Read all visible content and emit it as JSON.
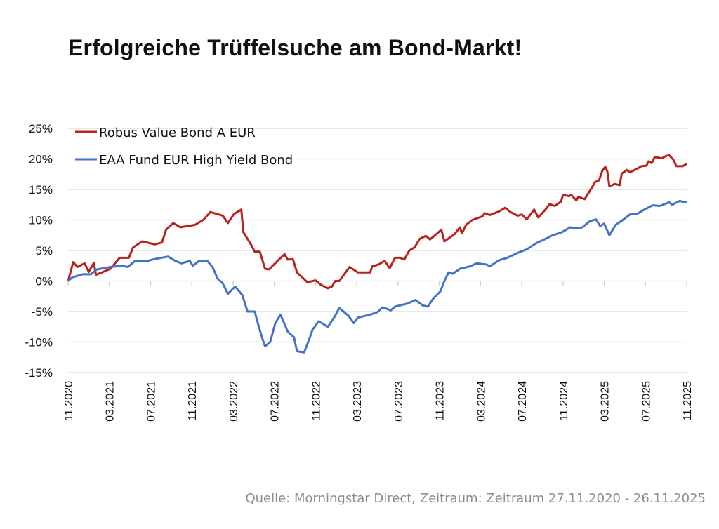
{
  "title": "Erfolgreiche Trüffelsuche am Bond-Markt!",
  "footer": "Quelle: Morningstar Direct, Zeitraum: Zeitraum 27.11.2020 - 26.11.2025",
  "chart_data": {
    "type": "line",
    "title": "Erfolgreiche Trüffelsuche am Bond-Markt!",
    "xlabel": "",
    "ylabel": "",
    "x_unit": "months since 11.2020",
    "xlim": [
      0,
      60
    ],
    "ylim": [
      -15,
      25
    ],
    "yticks": [
      25,
      20,
      15,
      10,
      5,
      0,
      -5,
      -10,
      -15
    ],
    "ytick_labels": [
      "25%",
      "20%",
      "15%",
      "10%",
      "5%",
      "0%",
      "-5%",
      "-10%",
      "-15%"
    ],
    "xticks": [
      0,
      4,
      8,
      12,
      16,
      20,
      24,
      28,
      32,
      36,
      40,
      44,
      48,
      52,
      56,
      60
    ],
    "xtick_labels": [
      "11.2020",
      "03.2021",
      "07.2021",
      "11.2021",
      "03.2022",
      "07.2022",
      "11.2022",
      "03.2023",
      "07.2023",
      "11.2023",
      "03.2024",
      "07.2024",
      "11.2024",
      "03.2025",
      "07.2025",
      "11.2025"
    ],
    "grid": true,
    "legend_position": "top-left",
    "series": [
      {
        "name": "Robus Value Bond A EUR",
        "color": "#b8221c",
        "points": [
          [
            0,
            0
          ],
          [
            0.5,
            3.1
          ],
          [
            0.9,
            2.3
          ],
          [
            1.6,
            2.9
          ],
          [
            2.0,
            1.5
          ],
          [
            2.5,
            3.0
          ],
          [
            2.7,
            1.0
          ],
          [
            4.1,
            2.0
          ],
          [
            5.0,
            3.8
          ],
          [
            5.9,
            3.8
          ],
          [
            6.3,
            5.5
          ],
          [
            7.2,
            6.5
          ],
          [
            8.4,
            6.0
          ],
          [
            9.1,
            6.3
          ],
          [
            9.5,
            8.4
          ],
          [
            10.2,
            9.5
          ],
          [
            10.9,
            8.8
          ],
          [
            12.3,
            9.2
          ],
          [
            13.1,
            10.0
          ],
          [
            13.8,
            11.3
          ],
          [
            15.0,
            10.7
          ],
          [
            15.5,
            9.5
          ],
          [
            16.1,
            11.0
          ],
          [
            16.8,
            11.7
          ],
          [
            17.0,
            8.0
          ],
          [
            17.7,
            6.1
          ],
          [
            18.1,
            4.8
          ],
          [
            18.6,
            4.8
          ],
          [
            19.1,
            2.0
          ],
          [
            19.5,
            1.9
          ],
          [
            20.2,
            3.1
          ],
          [
            21.0,
            4.4
          ],
          [
            21.3,
            3.5
          ],
          [
            21.8,
            3.6
          ],
          [
            22.2,
            1.4
          ],
          [
            23.2,
            -0.2
          ],
          [
            24.0,
            0.1
          ],
          [
            24.5,
            -0.6
          ],
          [
            25.2,
            -1.2
          ],
          [
            25.6,
            -0.9
          ],
          [
            25.9,
            0
          ],
          [
            26.3,
            0
          ],
          [
            27.3,
            2.3
          ],
          [
            28.1,
            1.4
          ],
          [
            29.3,
            1.4
          ],
          [
            29.5,
            2.4
          ],
          [
            30.1,
            2.7
          ],
          [
            30.7,
            3.3
          ],
          [
            31.2,
            2.1
          ],
          [
            31.7,
            3.8
          ],
          [
            32.2,
            3.8
          ],
          [
            32.6,
            3.5
          ],
          [
            33.1,
            5.0
          ],
          [
            33.6,
            5.5
          ],
          [
            34.1,
            6.9
          ],
          [
            34.7,
            7.4
          ],
          [
            35.1,
            6.8
          ],
          [
            35.6,
            7.5
          ],
          [
            36.2,
            8.4
          ],
          [
            36.5,
            6.5
          ],
          [
            37.5,
            7.7
          ],
          [
            38.0,
            8.8
          ],
          [
            38.2,
            7.8
          ],
          [
            38.6,
            9.2
          ],
          [
            39.2,
            10.0
          ],
          [
            40.2,
            10.6
          ],
          [
            40.4,
            11.1
          ],
          [
            40.9,
            10.8
          ],
          [
            41.8,
            11.4
          ],
          [
            42.4,
            12.0
          ],
          [
            42.9,
            11.3
          ],
          [
            43.6,
            10.7
          ],
          [
            44.0,
            10.9
          ],
          [
            44.5,
            10.1
          ],
          [
            45.2,
            11.7
          ],
          [
            45.6,
            10.4
          ],
          [
            46.3,
            11.7
          ],
          [
            46.7,
            12.6
          ],
          [
            47.2,
            12.3
          ],
          [
            47.8,
            13.0
          ],
          [
            48.0,
            14.1
          ],
          [
            48.6,
            13.9
          ],
          [
            48.8,
            14.1
          ],
          [
            49.3,
            13.2
          ],
          [
            49.5,
            13.8
          ],
          [
            50.1,
            13.4
          ],
          [
            50.8,
            15.3
          ],
          [
            51.1,
            16.2
          ],
          [
            51.5,
            16.5
          ],
          [
            51.8,
            18.0
          ],
          [
            52.1,
            18.7
          ],
          [
            52.3,
            18.0
          ],
          [
            52.5,
            15.5
          ],
          [
            53.0,
            15.9
          ],
          [
            53.5,
            15.7
          ],
          [
            53.7,
            17.6
          ],
          [
            54.2,
            18.2
          ],
          [
            54.5,
            17.8
          ],
          [
            55.2,
            18.4
          ],
          [
            55.6,
            18.8
          ],
          [
            56.1,
            18.9
          ],
          [
            56.3,
            19.6
          ],
          [
            56.6,
            19.3
          ],
          [
            56.9,
            20.3
          ],
          [
            57.6,
            20.1
          ],
          [
            58.0,
            20.5
          ],
          [
            58.3,
            20.6
          ],
          [
            58.7,
            19.9
          ],
          [
            59.0,
            18.8
          ],
          [
            59.6,
            18.8
          ],
          [
            60,
            19.2
          ]
        ]
      },
      {
        "name": "EAA Fund EUR High Yield Bond",
        "color": "#4472c4",
        "points": [
          [
            0,
            0
          ],
          [
            0.4,
            0.6
          ],
          [
            1.4,
            1.1
          ],
          [
            2.2,
            1.1
          ],
          [
            2.8,
            1.9
          ],
          [
            4.1,
            2.3
          ],
          [
            5.2,
            2.5
          ],
          [
            5.8,
            2.3
          ],
          [
            6.5,
            3.3
          ],
          [
            7.7,
            3.3
          ],
          [
            8.4,
            3.6
          ],
          [
            9.7,
            4.0
          ],
          [
            10.4,
            3.3
          ],
          [
            11.0,
            2.9
          ],
          [
            11.8,
            3.3
          ],
          [
            12.1,
            2.5
          ],
          [
            12.7,
            3.3
          ],
          [
            13.5,
            3.3
          ],
          [
            14.0,
            2.3
          ],
          [
            14.5,
            0.4
          ],
          [
            15.0,
            -0.4
          ],
          [
            15.5,
            -2.1
          ],
          [
            16.2,
            -0.9
          ],
          [
            16.9,
            -2.3
          ],
          [
            17.4,
            -5.0
          ],
          [
            18.1,
            -5.0
          ],
          [
            18.4,
            -6.9
          ],
          [
            18.8,
            -9.2
          ],
          [
            19.1,
            -10.7
          ],
          [
            19.6,
            -10.0
          ],
          [
            20.1,
            -6.9
          ],
          [
            20.6,
            -5.5
          ],
          [
            21.3,
            -8.3
          ],
          [
            21.9,
            -9.2
          ],
          [
            22.2,
            -11.5
          ],
          [
            22.9,
            -11.7
          ],
          [
            23.4,
            -9.5
          ],
          [
            23.7,
            -8.0
          ],
          [
            24.3,
            -6.6
          ],
          [
            25.2,
            -7.5
          ],
          [
            25.9,
            -5.7
          ],
          [
            26.3,
            -4.4
          ],
          [
            27.2,
            -5.7
          ],
          [
            27.7,
            -6.9
          ],
          [
            28.1,
            -6.0
          ],
          [
            29.3,
            -5.5
          ],
          [
            30.0,
            -5.1
          ],
          [
            30.5,
            -4.3
          ],
          [
            31.3,
            -4.8
          ],
          [
            31.7,
            -4.2
          ],
          [
            32.9,
            -3.7
          ],
          [
            33.7,
            -3.1
          ],
          [
            34.4,
            -4.0
          ],
          [
            34.9,
            -4.2
          ],
          [
            35.4,
            -2.9
          ],
          [
            36.1,
            -1.7
          ],
          [
            36.5,
            0
          ],
          [
            36.9,
            1.4
          ],
          [
            37.3,
            1.2
          ],
          [
            38.0,
            2.0
          ],
          [
            39.0,
            2.4
          ],
          [
            39.6,
            2.9
          ],
          [
            40.6,
            2.7
          ],
          [
            40.9,
            2.4
          ],
          [
            41.8,
            3.4
          ],
          [
            42.6,
            3.8
          ],
          [
            43.6,
            4.6
          ],
          [
            44.5,
            5.2
          ],
          [
            45.4,
            6.2
          ],
          [
            46.3,
            6.9
          ],
          [
            47.0,
            7.5
          ],
          [
            47.9,
            8.0
          ],
          [
            48.7,
            8.8
          ],
          [
            49.3,
            8.6
          ],
          [
            49.9,
            8.8
          ],
          [
            50.6,
            9.8
          ],
          [
            51.2,
            10.1
          ],
          [
            51.6,
            9.0
          ],
          [
            52.0,
            9.4
          ],
          [
            52.5,
            7.5
          ],
          [
            53.1,
            9.2
          ],
          [
            53.8,
            10.0
          ],
          [
            54.5,
            10.9
          ],
          [
            55.2,
            11.0
          ],
          [
            55.9,
            11.7
          ],
          [
            56.7,
            12.4
          ],
          [
            57.4,
            12.3
          ],
          [
            58.3,
            12.9
          ],
          [
            58.6,
            12.5
          ],
          [
            59.3,
            13.1
          ],
          [
            60,
            12.9
          ]
        ]
      }
    ]
  }
}
